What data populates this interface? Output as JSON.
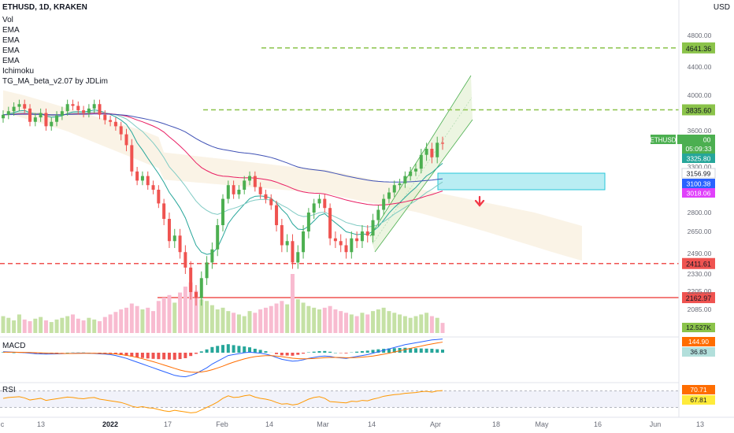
{
  "header": {
    "symbol": "ETHUSD, 1D, KRAKEN",
    "currency": "USD"
  },
  "indicators": [
    {
      "label": "Vol"
    },
    {
      "label": "EMA"
    },
    {
      "label": "EMA"
    },
    {
      "label": "EMA"
    },
    {
      "label": "EMA"
    },
    {
      "label": "Ichimoku"
    },
    {
      "label": "TG_MA_beta_v2.07 by JDLim"
    }
  ],
  "panes": {
    "macd_label": "MACD",
    "rsi_label": "RSI"
  },
  "colors": {
    "up": "#26a69a",
    "up_bright": "#4caf50",
    "down": "#ef5350",
    "lime": "#8bc34a",
    "ema_pink": "#e91e63",
    "ema_blue": "#3f51b5",
    "ema_teal": "#26a69a",
    "zone": "#80deea",
    "rsi_band": "#e8eaf6"
  },
  "chart_data": {
    "type": "candlestick",
    "title": "ETHUSD, 1D, KRAKEN",
    "xlabel": "",
    "ylabel": "USD",
    "ylim": [
      1950,
      5150
    ],
    "grid": false,
    "x_tick_labels": [
      "c",
      "13",
      "2022",
      "17",
      "Feb",
      "14",
      "Mar",
      "14",
      "Apr",
      "18",
      "May",
      "16",
      "Jun",
      "13"
    ],
    "y_tick_labels": [
      "4800.00",
      "4400.00",
      "4000.00",
      "3600.00",
      "3300.00",
      "2800.00",
      "2650.00",
      "2490.00",
      "2330.00",
      "2205.00",
      "2085.00"
    ],
    "horizontal_levels": [
      {
        "value": 4641.36,
        "label": "4641.36",
        "style": "dashed",
        "color": "#8bc34a"
      },
      {
        "value": 3835.6,
        "label": "3835.60",
        "style": "dashed",
        "color": "#8bc34a"
      },
      {
        "value": 2411.61,
        "label": "2411.61",
        "style": "dashed",
        "color": "#ef5350"
      },
      {
        "value": 2162.97,
        "label": "2162.97",
        "style": "solid",
        "color": "#ef5350"
      }
    ],
    "price_tags": [
      {
        "value": 3492.0,
        "label": "3492.00",
        "sub": "05:09:33",
        "color": "#4caf50",
        "name": "ETHUSD"
      },
      {
        "value": 3325.8,
        "label": "3325.80",
        "color": "#26a69a"
      },
      {
        "value": 3156.99,
        "label": "3156.99",
        "color": "#ffffff"
      },
      {
        "value": 3100.38,
        "label": "3100.38",
        "color": "#2962ff"
      },
      {
        "value": 3018.06,
        "label": "3018.06",
        "color": "#e040fb"
      }
    ],
    "volume_tag": "12.527K",
    "macd_tags": [
      "144.90",
      "36.83"
    ],
    "rsi_tags": [
      "70.71",
      "67.81"
    ],
    "close": [
      3780,
      3820,
      3870,
      3900,
      3850,
      3700,
      3750,
      3800,
      3650,
      3700,
      3770,
      3820,
      3900,
      3880,
      3830,
      3800,
      3850,
      3900,
      3780,
      3720,
      3700,
      3650,
      3570,
      3480,
      3250,
      3150,
      3200,
      3100,
      3050,
      2900,
      2750,
      2580,
      2620,
      2500,
      2380,
      2200,
      2160,
      2300,
      2420,
      2520,
      2700,
      2950,
      3100,
      3000,
      3050,
      3150,
      3200,
      3080,
      3000,
      2950,
      2880,
      2700,
      2550,
      2580,
      2420,
      2500,
      2650,
      2800,
      2900,
      2950,
      2850,
      2600,
      2580,
      2550,
      2500,
      2600,
      2580,
      2650,
      2620,
      2740,
      2830,
      2950,
      3020,
      3100,
      3120,
      3200,
      3250,
      3280,
      3400,
      3450,
      3380,
      3500,
      3492
    ],
    "volume": [
      20,
      18,
      15,
      22,
      16,
      14,
      17,
      19,
      15,
      13,
      16,
      18,
      20,
      22,
      17,
      15,
      18,
      16,
      14,
      19,
      22,
      25,
      28,
      30,
      35,
      32,
      28,
      30,
      26,
      38,
      42,
      45,
      36,
      48,
      55,
      60,
      50,
      40,
      38,
      33,
      28,
      30,
      26,
      24,
      22,
      20,
      26,
      24,
      28,
      30,
      32,
      35,
      38,
      34,
      70,
      40,
      36,
      32,
      30,
      28,
      30,
      32,
      28,
      26,
      24,
      22,
      20,
      24,
      22,
      26,
      28,
      30,
      26,
      24,
      22,
      20,
      18,
      20,
      22,
      24,
      20,
      18,
      12
    ],
    "macd": [
      10,
      8,
      5,
      3,
      0,
      -5,
      -10,
      -12,
      -15,
      -14,
      -12,
      -10,
      -8,
      -6,
      -5,
      -4,
      -6,
      -8,
      -12,
      -15,
      -20,
      -30,
      -45,
      -60,
      -80,
      -100,
      -120,
      -140,
      -160,
      -180,
      -200,
      -220,
      -240,
      -250,
      -255,
      -240,
      -220,
      -190,
      -160,
      -120,
      -90,
      -60,
      -30,
      -20,
      -10,
      0,
      5,
      0,
      -5,
      -15,
      -30,
      -50,
      -70,
      -80,
      -90,
      -85,
      -75,
      -60,
      -50,
      -40,
      -35,
      -40,
      -50,
      -55,
      -60,
      -50,
      -40,
      -30,
      -20,
      -5,
      10,
      25,
      40,
      55,
      70,
      85,
      95,
      105,
      115,
      125,
      135,
      140,
      144.9
    ],
    "macd_signal": [
      5,
      5,
      5,
      4,
      3,
      2,
      0,
      -2,
      -4,
      -6,
      -7,
      -8,
      -8,
      -8,
      -7,
      -6,
      -6,
      -6,
      -7,
      -8,
      -10,
      -14,
      -20,
      -28,
      -38,
      -50,
      -64,
      -79,
      -95,
      -112,
      -130,
      -148,
      -166,
      -183,
      -197,
      -205,
      -208,
      -204,
      -195,
      -180,
      -162,
      -142,
      -120,
      -100,
      -82,
      -66,
      -52,
      -42,
      -35,
      -31,
      -31,
      -35,
      -42,
      -50,
      -58,
      -63,
      -65,
      -64,
      -61,
      -57,
      -53,
      -50,
      -50,
      -51,
      -53,
      -53,
      -51,
      -47,
      -42,
      -35,
      -26,
      -16,
      -5,
      7,
      20,
      33,
      46,
      58,
      70,
      82,
      93,
      103,
      112
    ],
    "rsi": [
      52,
      54,
      55,
      56,
      53,
      48,
      50,
      52,
      47,
      49,
      51,
      53,
      55,
      54,
      52,
      51,
      53,
      54,
      50,
      48,
      46,
      44,
      42,
      38,
      33,
      30,
      32,
      29,
      28,
      25,
      22,
      20,
      23,
      21,
      19,
      17,
      18,
      24,
      30,
      36,
      43,
      52,
      58,
      54,
      55,
      58,
      60,
      55,
      52,
      50,
      47,
      42,
      38,
      39,
      36,
      38,
      44,
      50,
      54,
      56,
      52,
      44,
      43,
      42,
      41,
      45,
      44,
      47,
      46,
      50,
      53,
      57,
      59,
      61,
      62,
      64,
      65,
      66,
      68,
      69,
      67,
      70,
      70.71
    ]
  }
}
